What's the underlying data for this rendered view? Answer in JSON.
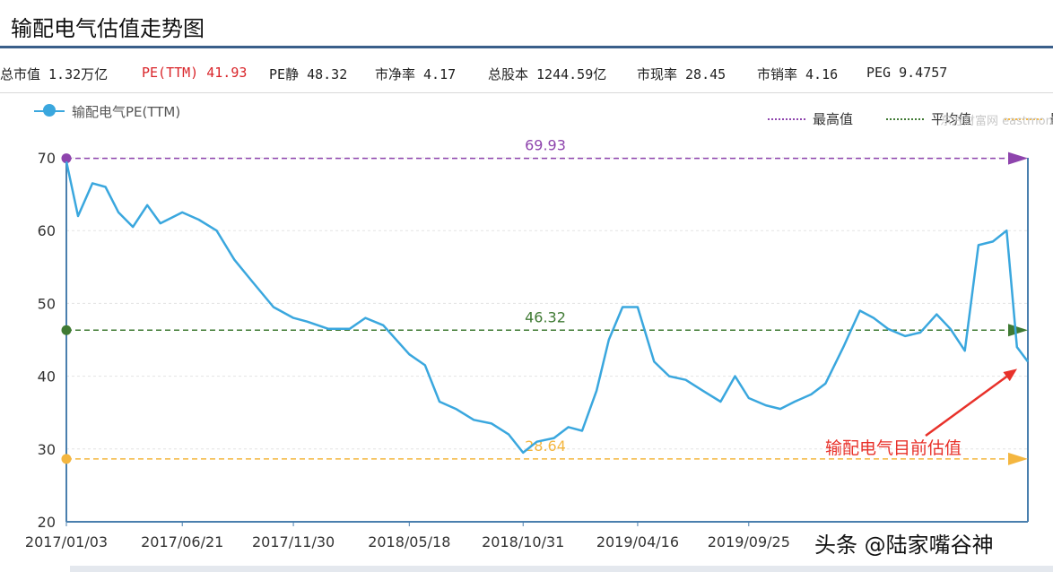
{
  "page_title": "输配电气估值走势图",
  "stats": [
    {
      "label": "总市值 1.32万亿",
      "color": "#222222"
    },
    {
      "label": "PE(TTM) 41.93",
      "color": "#d9252a"
    },
    {
      "label": "PE静 48.32",
      "color": "#222222"
    },
    {
      "label": "市净率 4.17",
      "color": "#222222"
    },
    {
      "label": "总股本 1244.59亿",
      "color": "#222222"
    },
    {
      "label": "市现率 28.45",
      "color": "#222222"
    },
    {
      "label": "市销率 4.16",
      "color": "#222222"
    },
    {
      "label": "PEG 9.4757",
      "color": "#222222"
    }
  ],
  "legend": {
    "main": "输配电气PE(TTM)",
    "max_label": "最高值",
    "avg_label": "平均值",
    "min_label": "最"
  },
  "watermark": "东方财富网 eastmoney.com",
  "credit": "头条 @陆家嘴谷神",
  "chart_data": {
    "type": "line",
    "title": "",
    "xlabel": "",
    "ylabel": "",
    "ylim": [
      20,
      70
    ],
    "yticks": [
      20,
      30,
      40,
      50,
      60,
      70
    ],
    "x_tick_labels": [
      "2017/01/03",
      "2017/06/21",
      "2017/11/30",
      "2018/05/18",
      "2018/10/31",
      "2019/04/16",
      "2019/09/25"
    ],
    "grid": true,
    "colors": {
      "line": "#3aa7de",
      "max": "#8e44ad",
      "avg": "#3f7a33",
      "min": "#f4b63f",
      "arrow": "#e8312a"
    },
    "series": [
      {
        "name": "输配电气PE(TTM)",
        "x": [
          "2017/01/03",
          "2017/01/20",
          "2017/02/10",
          "2017/03/01",
          "2017/03/20",
          "2017/04/10",
          "2017/05/01",
          "2017/05/20",
          "2017/06/21",
          "2017/07/15",
          "2017/08/10",
          "2017/09/05",
          "2017/10/01",
          "2017/11/01",
          "2017/11/30",
          "2017/12/20",
          "2018/01/20",
          "2018/02/20",
          "2018/03/15",
          "2018/04/10",
          "2018/05/18",
          "2018/06/10",
          "2018/07/01",
          "2018/07/25",
          "2018/08/20",
          "2018/09/15",
          "2018/10/10",
          "2018/10/31",
          "2018/11/20",
          "2018/12/15",
          "2019/01/05",
          "2019/01/25",
          "2019/02/15",
          "2019/03/05",
          "2019/03/25",
          "2019/04/16",
          "2019/05/10",
          "2019/06/01",
          "2019/06/25",
          "2019/07/20",
          "2019/08/15",
          "2019/09/05",
          "2019/09/25",
          "2019/10/20",
          "2019/11/10",
          "2019/12/01",
          "2019/12/25",
          "2020/01/15",
          "2020/02/10",
          "2020/03/05",
          "2020/03/25",
          "2020/04/15",
          "2020/05/10",
          "2020/06/01",
          "2020/06/25",
          "2020/07/15",
          "2020/08/05",
          "2020/08/25",
          "2020/09/15",
          "2020/10/05",
          "2020/10/20",
          "2020/11/05"
        ],
        "values": [
          69.5,
          62.0,
          66.5,
          66.0,
          62.5,
          60.5,
          63.5,
          61.0,
          62.5,
          61.5,
          60.0,
          56.0,
          53.0,
          49.5,
          48.0,
          47.5,
          46.5,
          46.5,
          48.0,
          47.0,
          43.0,
          41.5,
          36.5,
          35.5,
          34.0,
          33.5,
          32.0,
          29.5,
          31.0,
          31.5,
          33.0,
          32.5,
          38.0,
          45.0,
          49.5,
          49.5,
          42.0,
          40.0,
          39.5,
          38.0,
          36.5,
          40.0,
          37.0,
          36.0,
          35.5,
          36.5,
          37.5,
          39.0,
          44.0,
          49.0,
          48.0,
          46.5,
          45.5,
          46.0,
          48.5,
          46.5,
          43.5,
          58.0,
          58.5,
          60.0,
          44.0,
          42.0
        ]
      }
    ],
    "reference_lines": [
      {
        "name": "最高值",
        "value": 69.93,
        "label": "69.93"
      },
      {
        "name": "平均值",
        "value": 46.32,
        "label": "46.32"
      },
      {
        "name": "最低值",
        "value": 28.64,
        "label": "28.64"
      }
    ],
    "annotation": "输配电气目前估值"
  }
}
